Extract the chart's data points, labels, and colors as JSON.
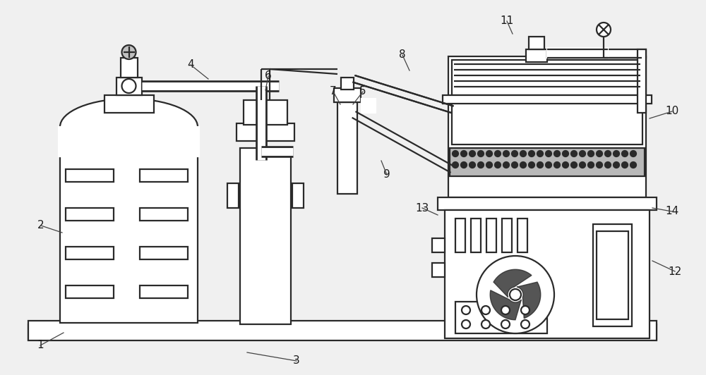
{
  "bg_color": "#f0f0f0",
  "line_color": "#2a2a2a",
  "line_width": 1.6,
  "fig_w": 10.0,
  "fig_h": 5.32
}
